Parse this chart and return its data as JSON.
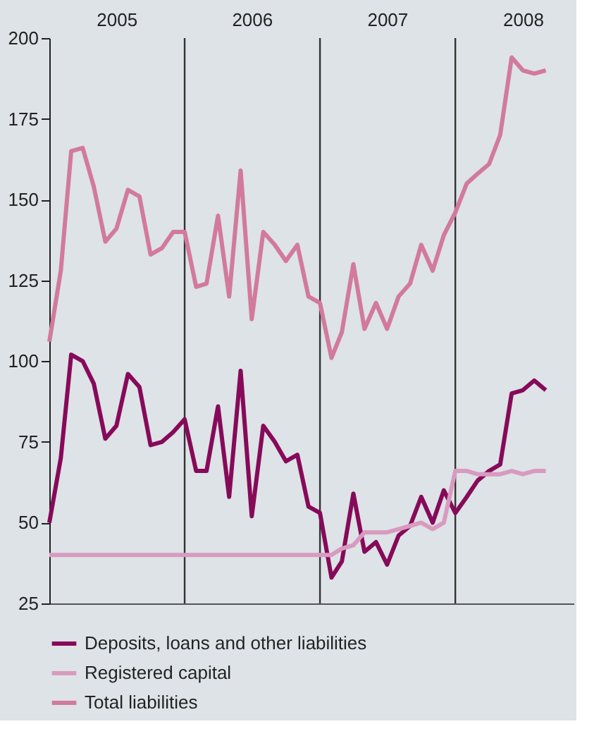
{
  "chart_data": {
    "type": "line",
    "x": [
      "2005-01",
      "2005-02",
      "2005-03",
      "2005-04",
      "2005-05",
      "2005-06",
      "2005-07",
      "2005-08",
      "2005-09",
      "2005-10",
      "2005-11",
      "2005-12",
      "2006-01",
      "2006-02",
      "2006-03",
      "2006-04",
      "2006-05",
      "2006-06",
      "2006-07",
      "2006-08",
      "2006-09",
      "2006-10",
      "2006-11",
      "2006-12",
      "2007-01",
      "2007-02",
      "2007-03",
      "2007-04",
      "2007-05",
      "2007-06",
      "2007-07",
      "2007-08",
      "2007-09",
      "2007-10",
      "2007-11",
      "2007-12",
      "2008-01",
      "2008-02",
      "2008-03",
      "2008-04",
      "2008-05",
      "2008-06",
      "2008-07",
      "2008-08",
      "2008-09"
    ],
    "series": [
      {
        "name": "Deposits, loans and other liabilities",
        "color": "#870a5a",
        "values": [
          50,
          70,
          102,
          100,
          93,
          76,
          80,
          96,
          92,
          74,
          75,
          78,
          82,
          66,
          66,
          86,
          58,
          97,
          52,
          80,
          75,
          69,
          71,
          55,
          53,
          33,
          38,
          59,
          41,
          44,
          37,
          46,
          49,
          58,
          50,
          60,
          53,
          58,
          63,
          66,
          68,
          90,
          91,
          94,
          91
        ]
      },
      {
        "name": "Registered capital",
        "color": "#d99ac0",
        "values": [
          40,
          40,
          40,
          40,
          40,
          40,
          40,
          40,
          40,
          40,
          40,
          40,
          40,
          40,
          40,
          40,
          40,
          40,
          40,
          40,
          40,
          40,
          40,
          40,
          40,
          40,
          42,
          43,
          47,
          47,
          47,
          48,
          49,
          50,
          48,
          50,
          66,
          66,
          65,
          65,
          65,
          66,
          65,
          66,
          66
        ]
      },
      {
        "name": "Total liabilities",
        "color": "#d27a9c",
        "values": [
          106,
          128,
          165,
          166,
          154,
          137,
          141,
          153,
          151,
          133,
          135,
          140,
          140,
          123,
          124,
          145,
          120,
          159,
          113,
          140,
          136,
          131,
          136,
          120,
          118,
          101,
          109,
          130,
          110,
          118,
          110,
          120,
          124,
          136,
          128,
          139,
          146,
          155,
          158,
          161,
          170,
          194,
          190,
          189,
          190
        ]
      }
    ],
    "xlim": [
      "2005-01",
      "2008-11-15"
    ],
    "xticks": [
      {
        "value": "2005-07",
        "label": "2005"
      },
      {
        "value": "2006-07",
        "label": "2006"
      },
      {
        "value": "2007-07",
        "label": "2007"
      },
      {
        "value": "2008-07",
        "label": "2008"
      }
    ],
    "ylim": [
      25,
      200
    ],
    "yticks": [
      25,
      50,
      75,
      100,
      125,
      150,
      175,
      200
    ],
    "ref_lines": [
      {
        "axis": "x",
        "value": "2006-01",
        "color": "#333333"
      },
      {
        "axis": "x",
        "value": "2007-01",
        "color": "#333333"
      },
      {
        "axis": "x",
        "value": "2008-01",
        "color": "#333333"
      }
    ],
    "grid": false,
    "legend": "bottom",
    "line_style": "solid",
    "marker": "none"
  }
}
